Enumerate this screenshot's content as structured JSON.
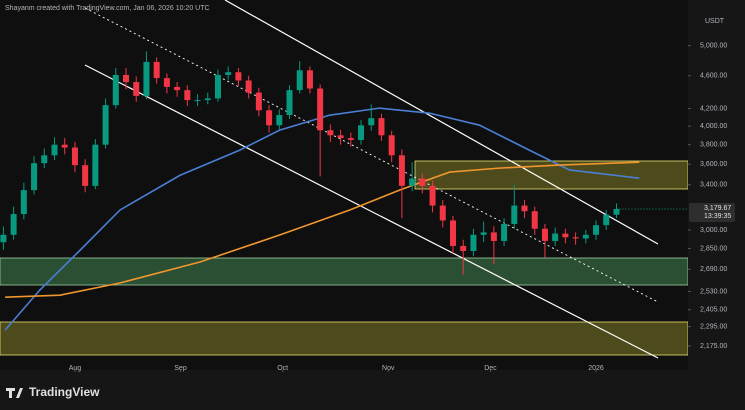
{
  "chart_data": {
    "type": "candlestick",
    "title": "Shayanm created with TradingView.com, Jan 06, 2026 10:20 UTC",
    "currency": "USDT",
    "brand": "TradingView",
    "countdown": "13:39:35",
    "last_label": {
      "value": 3179.67,
      "label": "3,179.67"
    },
    "log_scale": true,
    "up_color": "#089981",
    "down_color": "#f23645",
    "xlim": [
      -22,
      180
    ],
    "xticks": [
      {
        "value": 0,
        "label": "Aug"
      },
      {
        "value": 31,
        "label": "Sep"
      },
      {
        "value": 61,
        "label": "Oct"
      },
      {
        "value": 92,
        "label": "Nov"
      },
      {
        "value": 122,
        "label": "Dec"
      },
      {
        "value": 153,
        "label": "2026"
      }
    ],
    "ylim": [
      2035,
      5550
    ],
    "yticks": [
      {
        "value": 5000,
        "label": "5,000.00"
      },
      {
        "value": 4600,
        "label": "4,600.00"
      },
      {
        "value": 4200,
        "label": "4,200.00"
      },
      {
        "value": 4000,
        "label": "4,000.00"
      },
      {
        "value": 3800,
        "label": "3,800.00"
      },
      {
        "value": 3600,
        "label": "3,600.00"
      },
      {
        "value": 3400,
        "label": "3,400.00"
      },
      {
        "value": 3000,
        "label": "3,000.00"
      },
      {
        "value": 2850,
        "label": "2,850.00"
      },
      {
        "value": 2690,
        "label": "2,690.00"
      },
      {
        "value": 2530,
        "label": "2,530.00"
      },
      {
        "value": 2405,
        "label": "2,405.00"
      },
      {
        "value": 2295,
        "label": "2,295.00"
      },
      {
        "value": 2175,
        "label": "2,175.00"
      }
    ],
    "x": [
      -21,
      -18,
      -15,
      -12,
      -9,
      -6,
      -3,
      0,
      3,
      6,
      9,
      12,
      15,
      18,
      21,
      24,
      27,
      30,
      33,
      36,
      39,
      42,
      45,
      48,
      51,
      54,
      57,
      60,
      63,
      66,
      69,
      72,
      75,
      78,
      81,
      84,
      87,
      90,
      93,
      96,
      99,
      102,
      105,
      108,
      111,
      114,
      117,
      120,
      123,
      126,
      129,
      132,
      135,
      138,
      141,
      144,
      147,
      150,
      153,
      156,
      159
    ],
    "open": [
      2900,
      2960,
      3135,
      3350,
      3610,
      3690,
      3800,
      3770,
      3590,
      3390,
      3800,
      4240,
      4610,
      4520,
      4350,
      4780,
      4570,
      4460,
      4420,
      4300,
      4300,
      4320,
      4610,
      4645,
      4540,
      4390,
      4180,
      4010,
      4125,
      4420,
      4670,
      4440,
      3955,
      3900,
      3870,
      3850,
      4010,
      4090,
      3900,
      3690,
      3390,
      3460,
      3390,
      3210,
      3080,
      2870,
      2830,
      2960,
      2980,
      2910,
      3050,
      3210,
      3160,
      3010,
      2910,
      2970,
      2940,
      2930,
      2960,
      3040,
      3130
    ],
    "high": [
      3030,
      3200,
      3420,
      3680,
      3760,
      3880,
      3870,
      3830,
      3650,
      3860,
      4320,
      4700,
      4700,
      4590,
      4920,
      4840,
      4630,
      4520,
      4480,
      4370,
      4390,
      4680,
      4720,
      4700,
      4600,
      4450,
      4240,
      4190,
      4480,
      4790,
      4720,
      4490,
      4020,
      3960,
      3930,
      4070,
      4250,
      4140,
      3950,
      3750,
      3620,
      3510,
      3440,
      3260,
      3120,
      2920,
      3010,
      3070,
      3030,
      3100,
      3400,
      3260,
      3200,
      3050,
      3020,
      3010,
      2980,
      3000,
      3080,
      3170,
      3230
    ],
    "low": [
      2840,
      2920,
      3090,
      3310,
      3560,
      3640,
      3700,
      3520,
      3330,
      3360,
      3760,
      4200,
      4430,
      4280,
      4310,
      4500,
      4380,
      4340,
      4230,
      4230,
      4250,
      4280,
      4550,
      4470,
      4320,
      4110,
      3930,
      3960,
      4080,
      4380,
      4380,
      3480,
      3830,
      3800,
      3780,
      3800,
      3950,
      3840,
      3620,
      3100,
      3340,
      3320,
      3150,
      3020,
      2810,
      2650,
      2790,
      2900,
      2730,
      2870,
      3010,
      3100,
      2960,
      2780,
      2870,
      2890,
      2880,
      2890,
      2920,
      3000,
      3100
    ],
    "close": [
      2960,
      3135,
      3350,
      3610,
      3690,
      3800,
      3770,
      3590,
      3390,
      3800,
      4240,
      4610,
      4520,
      4350,
      4780,
      4570,
      4460,
      4420,
      4300,
      4300,
      4320,
      4610,
      4645,
      4540,
      4390,
      4180,
      4010,
      4125,
      4420,
      4670,
      4440,
      3955,
      3900,
      3870,
      3850,
      4010,
      4090,
      3900,
      3690,
      3390,
      3460,
      3390,
      3210,
      3080,
      2870,
      2830,
      2960,
      2980,
      2910,
      3050,
      3210,
      3160,
      3010,
      2910,
      2970,
      2940,
      2930,
      2960,
      3040,
      3130,
      3179.67
    ],
    "overlays": [
      {
        "color": "#4a7fd4",
        "x": [
          -20.5,
          -10.3,
          1.5,
          13.2,
          30.8,
          48.4,
          60.1,
          74.8,
          89.4,
          104.1,
          118.8,
          133.4,
          145.2,
          165.7
        ],
        "values": [
          2273,
          2540,
          2836,
          3170,
          3490,
          3743,
          3956,
          4124,
          4205,
          4147,
          4011,
          3743,
          3543,
          3463
        ]
      },
      {
        "color": "#f0962e",
        "x": [
          -20.5,
          -4.4,
          13.2,
          36.7,
          60.1,
          80.6,
          95.3,
          110,
          124.6,
          142.2,
          165.7
        ],
        "values": [
          2490,
          2504,
          2590,
          2745,
          2958,
          3170,
          3350,
          3522,
          3561,
          3591,
          3620
        ]
      }
    ]
  }
}
